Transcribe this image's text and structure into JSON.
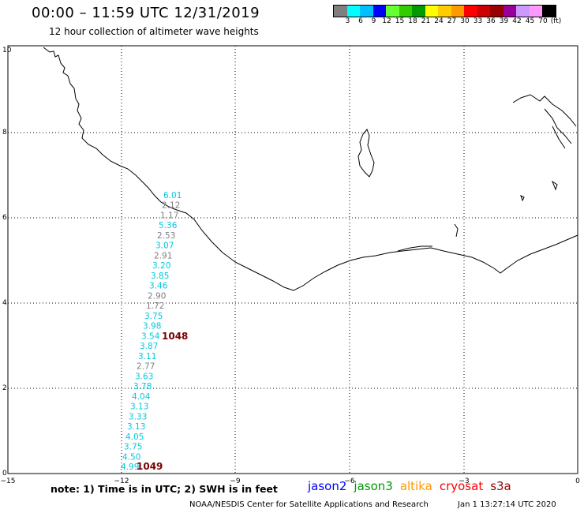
{
  "title": "00:00 – 11:59 UTC 12/31/2019",
  "subtitle": "12 hour collection of altimeter wave heights",
  "colorbar": {
    "colors": [
      "#7f7f7f",
      "#00ffff",
      "#00bfff",
      "#0000ff",
      "#66ff33",
      "#33cc00",
      "#009900",
      "#ffff00",
      "#ffcc00",
      "#ff9900",
      "#ff0000",
      "#cc0000",
      "#990000",
      "#990099",
      "#cc99ff",
      "#ff99ff",
      "#000000"
    ],
    "labels": [
      "3",
      "6",
      "9",
      "12",
      "15",
      "18",
      "21",
      "24",
      "27",
      "30",
      "33",
      "36",
      "39",
      "42",
      "45",
      "70",
      "(ft)"
    ]
  },
  "axes": {
    "x_ticks": [
      "−15",
      "−12",
      "−9",
      "−6",
      "−3",
      "0"
    ],
    "y_ticks": [
      "0",
      "2",
      "4",
      "6",
      "8",
      "10"
    ]
  },
  "swh_track": {
    "values": [
      "6.01",
      "2.12",
      "1.17",
      "5.36",
      "2.53",
      "3.07",
      "2.91",
      "3.20",
      "3.85",
      "3.46",
      "2.90",
      "1.72",
      "3.75",
      "3.98",
      "3.54",
      "3.87",
      "3.11",
      "2.77",
      "3.63",
      "3.78",
      "4.04",
      "3.13",
      "3.33",
      "3.13",
      "4.05",
      "3.75",
      "4.50",
      "4.99"
    ],
    "colors": [
      "#00c8e0",
      "#7f7f7f",
      "#7f7f7f",
      "#00c8e0",
      "#7f7f7f",
      "#00c8e0",
      "#7f7f7f",
      "#00c8e0",
      "#00c8e0",
      "#00c8e0",
      "#7f7f7f",
      "#7f7f7f",
      "#00c8e0",
      "#00c8e0",
      "#00c8e0",
      "#00c8e0",
      "#00c8e0",
      "#7f7f7f",
      "#00c8e0",
      "#00c8e0",
      "#00c8e0",
      "#00c8e0",
      "#00c8e0",
      "#00c8e0",
      "#00c8e0",
      "#00c8e0",
      "#00c8e0",
      "#00c8e0"
    ]
  },
  "time_labels": [
    "1048",
    "1049"
  ],
  "note": "note: 1) Time is in UTC; 2) SWH is in feet",
  "satellites": [
    {
      "name": "jason2",
      "color": "#0000ff"
    },
    {
      "name": "jason3",
      "color": "#009900"
    },
    {
      "name": "altika",
      "color": "#ff9900"
    },
    {
      "name": "cryosat",
      "color": "#ff0000"
    },
    {
      "name": "s3a",
      "color": "#990000"
    }
  ],
  "credit": "NOAA/NESDIS Center for Satellite Applications and Research",
  "credit_time": "Jan  1 13:27:14 UTC 2020"
}
